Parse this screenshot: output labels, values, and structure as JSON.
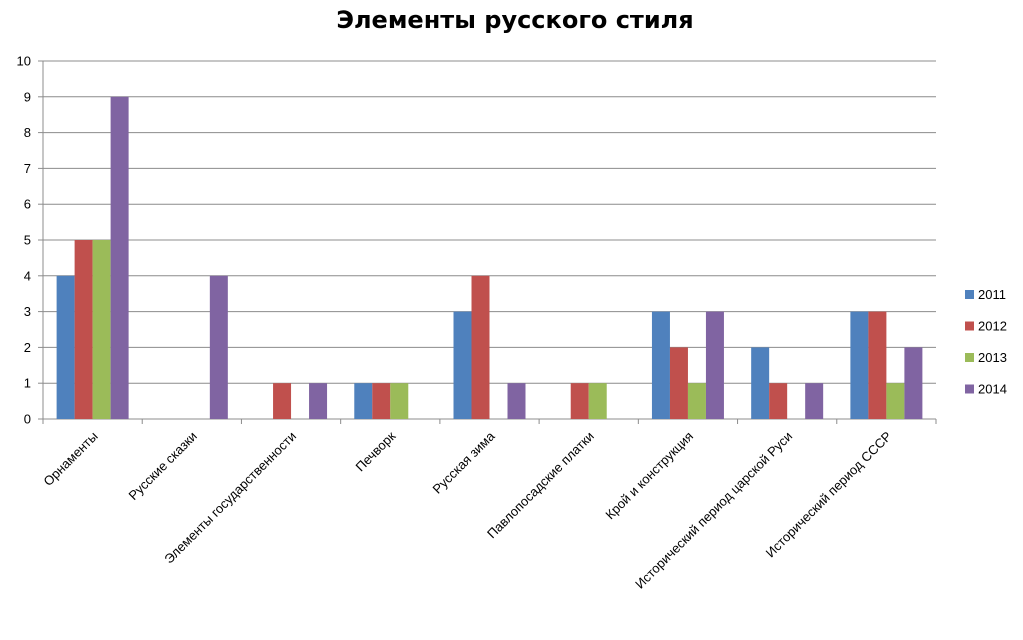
{
  "chart_data": {
    "type": "bar",
    "title": "Элементы русского стиля",
    "xlabel": "",
    "ylabel": "",
    "ylim": [
      0,
      10
    ],
    "yticks": [
      0,
      1,
      2,
      3,
      4,
      5,
      6,
      7,
      8,
      9,
      10
    ],
    "grid": true,
    "legend_position": "right",
    "categories": [
      "Орнаменты",
      "Русские сказки",
      "Элементы государственности",
      "Печворк",
      "Русская зима",
      "Павлопосадские платки",
      "Крой и конструкция",
      "Исторический период царской Руси",
      "Исторический период СССР"
    ],
    "series": [
      {
        "name": "2011",
        "color": "#4f81bd",
        "values": [
          4,
          0,
          0,
          1,
          3,
          0,
          3,
          2,
          3
        ]
      },
      {
        "name": "2012",
        "color": "#c0504d",
        "values": [
          5,
          0,
          1,
          1,
          4,
          1,
          2,
          1,
          3
        ]
      },
      {
        "name": "2013",
        "color": "#9bbb59",
        "values": [
          5,
          0,
          0,
          1,
          0,
          1,
          1,
          0,
          1
        ]
      },
      {
        "name": "2014",
        "color": "#8064a2",
        "values": [
          9,
          4,
          1,
          0,
          1,
          0,
          3,
          1,
          2
        ]
      }
    ]
  }
}
